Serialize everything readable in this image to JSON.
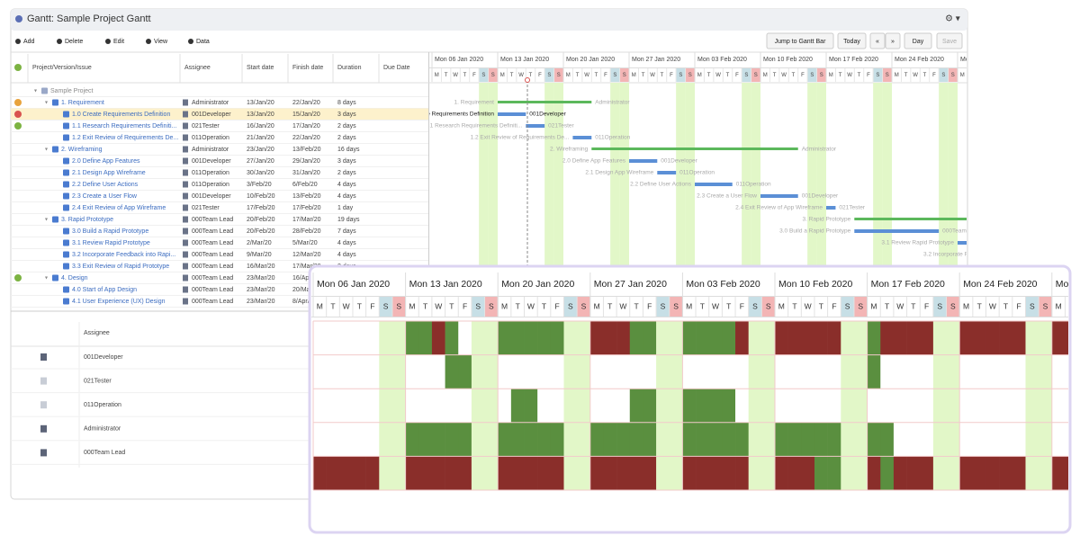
{
  "window": {
    "title": "Gantt:  Sample Project Gantt",
    "toolbar": [
      "Add",
      "Delete",
      "Edit",
      "View",
      "Data"
    ],
    "buttons": {
      "jump": "Jump to Gantt Bar",
      "today": "Today",
      "view": "Day",
      "save": "Save"
    }
  },
  "table": {
    "columns": [
      "Project/Version/Issue",
      "Assignee",
      "Start date",
      "Finish date",
      "Duration",
      "Due Date"
    ],
    "rows": [
      {
        "name": "Sample Project"
      },
      {
        "name": "1. Requirement",
        "assignee": "Administrator",
        "start": "13/Jan/20",
        "finish": "22/Jan/20",
        "duration": "8 days"
      },
      {
        "name": "1.0 Create Requirements Definition",
        "assignee": "001Developer",
        "start": "13/Jan/20",
        "finish": "15/Jan/20",
        "duration": "3 days"
      },
      {
        "name": "1.1 Research Requirements Definiti...",
        "assignee": "021Tester",
        "start": "16/Jan/20",
        "finish": "17/Jan/20",
        "duration": "2 days"
      },
      {
        "name": "1.2 Exit Review of Requirements De...",
        "assignee": "011Operation",
        "start": "21/Jan/20",
        "finish": "22/Jan/20",
        "duration": "2 days"
      },
      {
        "name": "2. Wireframing",
        "assignee": "Administrator",
        "start": "23/Jan/20",
        "finish": "13/Feb/20",
        "duration": "16 days"
      },
      {
        "name": "2.0 Define App Features",
        "assignee": "001Developer",
        "start": "27/Jan/20",
        "finish": "29/Jan/20",
        "duration": "3 days"
      },
      {
        "name": "2.1 Design App Wireframe",
        "assignee": "011Operation",
        "start": "30/Jan/20",
        "finish": "31/Jan/20",
        "duration": "2 days"
      },
      {
        "name": "2.2 Define User Actions",
        "assignee": "011Operation",
        "start": "3/Feb/20",
        "finish": "6/Feb/20",
        "duration": "4 days"
      },
      {
        "name": "2.3 Create a User Flow",
        "assignee": "001Developer",
        "start": "10/Feb/20",
        "finish": "13/Feb/20",
        "duration": "4 days"
      },
      {
        "name": "2.4 Exit Review of App Wireframe",
        "assignee": "021Tester",
        "start": "17/Feb/20",
        "finish": "17/Feb/20",
        "duration": "1 day"
      },
      {
        "name": "3. Rapid Prototype",
        "assignee": "000Team Lead",
        "start": "20/Feb/20",
        "finish": "17/Mar/20",
        "duration": "19 days"
      },
      {
        "name": "3.0 Build a Rapid Prototype",
        "assignee": "000Team Lead",
        "start": "20/Feb/20",
        "finish": "28/Feb/20",
        "duration": "7 days"
      },
      {
        "name": "3.1 Review Rapid Prototype",
        "assignee": "000Team Lead",
        "start": "2/Mar/20",
        "finish": "5/Mar/20",
        "duration": "4 days"
      },
      {
        "name": "3.2 Incorporate Feedback into Rapi...",
        "assignee": "000Team Lead",
        "start": "9/Mar/20",
        "finish": "12/Mar/20",
        "duration": "4 days"
      },
      {
        "name": "3.3 Exit Review of Rapid Prototype",
        "assignee": "000Team Lead",
        "start": "16/Mar/20",
        "finish": "17/Mar/20",
        "duration": "2 days"
      },
      {
        "name": "4. Design",
        "assignee": "000Team Lead",
        "start": "23/Mar/20",
        "finish": "16/Apr/",
        "duration": ""
      },
      {
        "name": "4.0 Start of App Design",
        "assignee": "000Team Lead",
        "start": "23/Mar/20",
        "finish": "20/Mar/"
      },
      {
        "name": "4.1 User Experience (UX) Design",
        "assignee": "000Team Lead",
        "start": "23/Mar/20",
        "finish": "8/Apr/"
      }
    ]
  },
  "gantt": {
    "weeks": [
      "Mon 06 Jan 2020",
      "Mon 13 Jan 2020",
      "Mon 20 Jan 2020",
      "Mon 27 Jan 2020",
      "Mon 03 Feb 2020",
      "Mon 10 Feb 2020",
      "Mon 17 Feb 2020",
      "Mon 24 Feb 2020",
      "Mo"
    ],
    "day_letters": [
      "M",
      "T",
      "W",
      "T",
      "F",
      "S",
      "S"
    ]
  },
  "resources": {
    "header": "Assignee",
    "rows": [
      "001Developer",
      "021Tester",
      "011Operation",
      "Administrator",
      "000Team Lead"
    ]
  }
}
